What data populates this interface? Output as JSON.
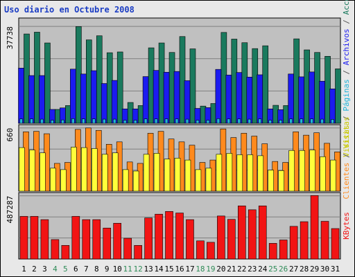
{
  "title": "Uso diario en Octubre 2008",
  "chart_data": [
    {
      "type": "bar",
      "panel": "top",
      "categories": [
        "1",
        "2",
        "3",
        "4",
        "5",
        "6",
        "7",
        "8",
        "9",
        "10",
        "11",
        "12",
        "13",
        "14",
        "15",
        "16",
        "17",
        "18",
        "19",
        "20",
        "21",
        "22",
        "23",
        "24",
        "25",
        "26",
        "27",
        "28",
        "29",
        "30",
        "31"
      ],
      "weekend_days": [
        "4",
        "5",
        "11",
        "12",
        "18",
        "19",
        "25",
        "26"
      ],
      "y_tick_label": "37738",
      "ylim": [
        0,
        37738
      ],
      "axis_label_parts": [
        "Visitas",
        "/",
        "Páginas",
        "/",
        "Archivos",
        "/",
        "Accesos"
      ],
      "series": [
        {
          "name": "Accesos",
          "color": "#1a7a5e",
          "values": [
            34800,
            35500,
            31300,
            5400,
            6900,
            37700,
            32500,
            34100,
            27500,
            27800,
            8100,
            6900,
            29400,
            31300,
            27600,
            33800,
            29000,
            6700,
            7700,
            35400,
            32800,
            31400,
            29100,
            30200,
            7000,
            6900,
            32900,
            28600,
            27600,
            26100,
            21200
          ]
        },
        {
          "name": "Archivos",
          "color": "#1b1bf0",
          "values": [
            21500,
            18600,
            18600,
            5400,
            6000,
            21100,
            19200,
            20500,
            15500,
            16700,
            5600,
            5600,
            18200,
            20600,
            19900,
            20200,
            16600,
            5800,
            6100,
            21000,
            18800,
            19800,
            18000,
            18900,
            5600,
            5300,
            19200,
            18100,
            20000,
            16400,
            13400
          ]
        },
        {
          "name": "Páginas",
          "color": "#1fb3d9",
          "values": [
            1700,
            1700,
            1600,
            1200,
            1300,
            1800,
            1700,
            1700,
            1600,
            1600,
            1200,
            1200,
            1700,
            1700,
            1700,
            1700,
            1600,
            1200,
            1200,
            1800,
            1700,
            1700,
            1600,
            1700,
            1200,
            1200,
            1700,
            1700,
            1700,
            1600,
            1500
          ]
        }
      ]
    },
    {
      "type": "bar",
      "panel": "middle",
      "categories": [
        "1",
        "2",
        "3",
        "4",
        "5",
        "6",
        "7",
        "8",
        "9",
        "10",
        "11",
        "12",
        "13",
        "14",
        "15",
        "16",
        "17",
        "18",
        "19",
        "20",
        "21",
        "22",
        "23",
        "24",
        "25",
        "26",
        "27",
        "28",
        "29",
        "30",
        "31"
      ],
      "y_tick_label": "660",
      "ylim": [
        0,
        660
      ],
      "axis_label_parts": [
        "Clientes",
        "/",
        "Visitas"
      ],
      "series": [
        {
          "name": "Clientes",
          "color": "#ff8a1d",
          "values": [
            620,
            625,
            600,
            290,
            300,
            645,
            660,
            635,
            490,
            515,
            305,
            290,
            605,
            625,
            545,
            515,
            480,
            300,
            325,
            650,
            560,
            605,
            575,
            495,
            310,
            300,
            620,
            585,
            610,
            500,
            410
          ]
        },
        {
          "name": "Visitas",
          "color": "#ffff3a",
          "values": [
            455,
            430,
            400,
            240,
            225,
            460,
            455,
            445,
            385,
            400,
            225,
            210,
            385,
            395,
            335,
            345,
            325,
            225,
            240,
            385,
            395,
            380,
            380,
            370,
            220,
            215,
            425,
            425,
            430,
            360,
            325
          ]
        }
      ]
    },
    {
      "type": "bar",
      "panel": "bottom",
      "categories": [
        "1",
        "2",
        "3",
        "4",
        "5",
        "6",
        "7",
        "8",
        "9",
        "10",
        "11",
        "12",
        "13",
        "14",
        "15",
        "16",
        "17",
        "18",
        "19",
        "20",
        "21",
        "22",
        "23",
        "24",
        "25",
        "26",
        "27",
        "28",
        "29",
        "30",
        "31"
      ],
      "y_tick_label": "487287",
      "ylim": [
        0,
        487287
      ],
      "axis_label_parts": [
        "KBytes"
      ],
      "series": [
        {
          "name": "KBytes",
          "color": "#f21414",
          "values": [
            329000,
            329000,
            304000,
            150000,
            105000,
            329000,
            304000,
            304000,
            239000,
            276000,
            160000,
            105000,
            317000,
            346000,
            367000,
            355000,
            304000,
            140000,
            129000,
            332000,
            306000,
            410000,
            380000,
            410000,
            121000,
            147000,
            252000,
            288000,
            490000,
            291000,
            235000
          ]
        }
      ]
    }
  ]
}
